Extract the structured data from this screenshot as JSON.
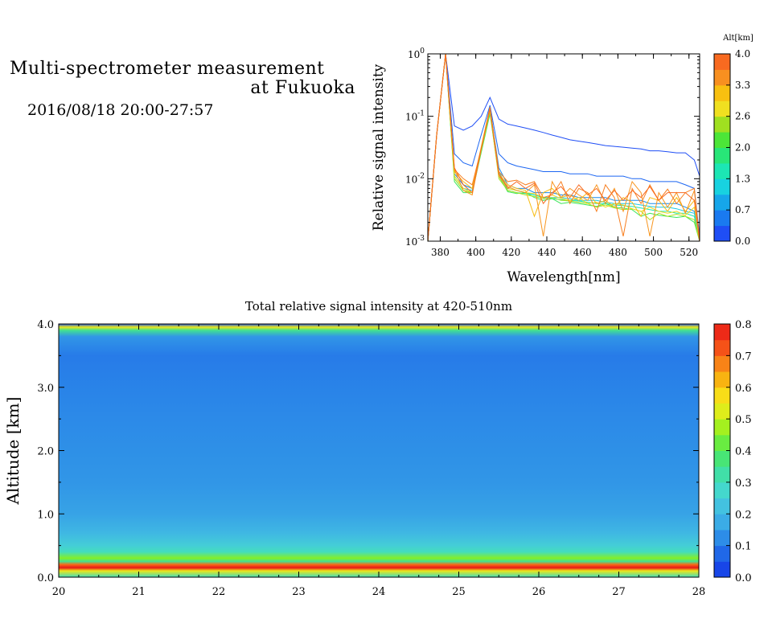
{
  "header": {
    "title_line1": "Multi-spectrometer measurement",
    "title_line2": "at Fukuoka",
    "datetime": "2016/08/18 20:00-27:57"
  },
  "colors": {
    "alt_scale": [
      "#1f4ef5",
      "#1a7af0",
      "#16a6ea",
      "#18d2e0",
      "#1ce6b4",
      "#28e678",
      "#4ce638",
      "#a0e020",
      "#f0e020",
      "#f8c010",
      "#f89020",
      "#f86a20"
    ],
    "heat_scale": [
      "#1436e8",
      "#1c5ae8",
      "#2a86e8",
      "#3aaae6",
      "#44c4e0",
      "#44dcc8",
      "#40e09a",
      "#4ee85a",
      "#8cf020",
      "#d8f01c",
      "#f8e018",
      "#f8b010",
      "#f87818",
      "#f44018",
      "#e81818"
    ]
  },
  "chart_data": [
    {
      "type": "line",
      "title": "",
      "xlabel": "Wavelength[nm]",
      "ylabel": "Relative signal intensity",
      "xlim": [
        373,
        526
      ],
      "ylim": [
        0.001,
        1
      ],
      "yscale": "log",
      "x_ticks": [
        "380",
        "400",
        "420",
        "440",
        "460",
        "480",
        "500",
        "520"
      ],
      "y_ticks": [
        "10^0",
        "10^-1",
        "10^-2",
        "10^-3"
      ],
      "colorbar": {
        "label": "Alt[km]",
        "ticks": [
          "4.0",
          "3.3",
          "2.6",
          "2.0",
          "1.3",
          "0.7",
          "0.0"
        ],
        "range": [
          0,
          4
        ]
      },
      "x": [
        373,
        378,
        383,
        388,
        393,
        398,
        403,
        408,
        413,
        418,
        423,
        428,
        433,
        438,
        443,
        448,
        453,
        458,
        463,
        468,
        473,
        478,
        483,
        488,
        493,
        498,
        503,
        508,
        513,
        518,
        523,
        526
      ],
      "series": [
        {
          "alt": 0.0,
          "values": [
            0.001,
            0.05,
            1.0,
            0.07,
            0.06,
            0.07,
            0.1,
            0.2,
            0.09,
            0.075,
            0.07,
            0.065,
            0.06,
            0.055,
            0.05,
            0.046,
            0.042,
            0.04,
            0.038,
            0.036,
            0.034,
            0.033,
            0.032,
            0.031,
            0.03,
            0.028,
            0.028,
            0.027,
            0.026,
            0.026,
            0.02,
            0.011
          ]
        },
        {
          "alt": 0.2,
          "values": [
            0.001,
            0.05,
            1.0,
            0.025,
            0.018,
            0.016,
            0.05,
            0.15,
            0.025,
            0.018,
            0.016,
            0.015,
            0.014,
            0.013,
            0.013,
            0.013,
            0.012,
            0.012,
            0.012,
            0.011,
            0.011,
            0.011,
            0.011,
            0.01,
            0.01,
            0.009,
            0.009,
            0.009,
            0.009,
            0.008,
            0.007,
            0.0012
          ]
        },
        {
          "alt": 0.5,
          "values": [
            0.001,
            0.05,
            1.0,
            0.012,
            0.008,
            0.007,
            0.03,
            0.13,
            0.015,
            0.008,
            0.007,
            0.007,
            0.006,
            0.006,
            0.006,
            0.0055,
            0.0055,
            0.005,
            0.005,
            0.005,
            0.005,
            0.0045,
            0.0045,
            0.0045,
            0.0045,
            0.004,
            0.004,
            0.004,
            0.004,
            0.0035,
            0.003,
            0.001
          ]
        },
        {
          "alt": 1.0,
          "values": [
            0.001,
            0.05,
            1.0,
            0.011,
            0.007,
            0.0065,
            0.03,
            0.14,
            0.013,
            0.007,
            0.0065,
            0.006,
            0.0055,
            0.005,
            0.005,
            0.005,
            0.0048,
            0.0045,
            0.0045,
            0.0045,
            0.0042,
            0.004,
            0.004,
            0.004,
            0.0038,
            0.0036,
            0.0035,
            0.0035,
            0.0033,
            0.003,
            0.0028,
            0.001
          ]
        },
        {
          "alt": 1.5,
          "values": [
            0.001,
            0.05,
            1.0,
            0.01,
            0.0065,
            0.006,
            0.028,
            0.12,
            0.012,
            0.0065,
            0.006,
            0.0058,
            0.0055,
            0.005,
            0.0048,
            0.0046,
            0.0045,
            0.0044,
            0.0042,
            0.004,
            0.004,
            0.0038,
            0.0037,
            0.0036,
            0.0034,
            0.0032,
            0.003,
            0.003,
            0.0028,
            0.0028,
            0.0025,
            0.001
          ]
        },
        {
          "alt": 2.0,
          "values": [
            0.001,
            0.05,
            1.0,
            0.009,
            0.006,
            0.006,
            0.026,
            0.11,
            0.011,
            0.0062,
            0.0058,
            0.006,
            0.005,
            0.0045,
            0.0048,
            0.004,
            0.0042,
            0.004,
            0.0038,
            0.0036,
            0.004,
            0.0035,
            0.0034,
            0.0032,
            0.0025,
            0.0028,
            0.0026,
            0.0025,
            0.0024,
            0.0025,
            0.002,
            0.001
          ]
        },
        {
          "alt": 2.6,
          "values": [
            0.001,
            0.05,
            1.0,
            0.01,
            0.0065,
            0.006,
            0.028,
            0.12,
            0.01,
            0.0065,
            0.006,
            0.0055,
            0.0052,
            0.0048,
            0.005,
            0.0045,
            0.0044,
            0.0042,
            0.004,
            0.0035,
            0.0038,
            0.0034,
            0.0032,
            0.0033,
            0.003,
            0.0022,
            0.0028,
            0.0025,
            0.0027,
            0.0025,
            0.0022,
            0.001
          ]
        },
        {
          "alt": 3.0,
          "values": [
            0.001,
            0.05,
            1.0,
            0.011,
            0.007,
            0.006,
            0.03,
            0.13,
            0.011,
            0.007,
            0.0065,
            0.006,
            0.0058,
            0.005,
            0.0055,
            0.0048,
            0.0045,
            0.005,
            0.004,
            0.0042,
            0.0035,
            0.004,
            0.0038,
            0.0033,
            0.003,
            0.0035,
            0.003,
            0.0028,
            0.003,
            0.0026,
            0.0035,
            0.001
          ]
        },
        {
          "alt": 3.3,
          "values": [
            0.001,
            0.05,
            1.0,
            0.013,
            0.009,
            0.007,
            0.032,
            0.14,
            0.012,
            0.008,
            0.007,
            0.0065,
            0.0025,
            0.006,
            0.007,
            0.005,
            0.0055,
            0.0045,
            0.006,
            0.004,
            0.0045,
            0.0035,
            0.005,
            0.0042,
            0.0025,
            0.005,
            0.0045,
            0.003,
            0.005,
            0.003,
            0.0045,
            0.001
          ]
        },
        {
          "alt": 3.6,
          "values": [
            0.001,
            0.05,
            1.0,
            0.014,
            0.0065,
            0.0055,
            0.03,
            0.13,
            0.011,
            0.0075,
            0.0065,
            0.006,
            0.008,
            0.0012,
            0.009,
            0.005,
            0.007,
            0.0055,
            0.0045,
            0.008,
            0.004,
            0.007,
            0.003,
            0.009,
            0.006,
            0.0012,
            0.006,
            0.0035,
            0.006,
            0.0028,
            0.0065,
            0.001
          ]
        },
        {
          "alt": 3.8,
          "values": [
            0.001,
            0.05,
            1.0,
            0.014,
            0.01,
            0.008,
            0.03,
            0.13,
            0.013,
            0.009,
            0.0095,
            0.008,
            0.009,
            0.005,
            0.0055,
            0.009,
            0.004,
            0.007,
            0.006,
            0.003,
            0.008,
            0.005,
            0.0012,
            0.007,
            0.004,
            0.008,
            0.0045,
            0.0068,
            0.004,
            0.006,
            0.007,
            0.001
          ]
        },
        {
          "alt": 4.0,
          "values": [
            0.001,
            0.05,
            1.0,
            0.015,
            0.008,
            0.006,
            0.03,
            0.14,
            0.012,
            0.007,
            0.009,
            0.007,
            0.0085,
            0.004,
            0.006,
            0.0075,
            0.005,
            0.008,
            0.0055,
            0.007,
            0.0045,
            0.0065,
            0.0045,
            0.0065,
            0.005,
            0.0075,
            0.0045,
            0.006,
            0.006,
            0.006,
            0.0045,
            0.001
          ]
        }
      ]
    },
    {
      "type": "heatmap",
      "title": "Total relative signal intensity at 420-510nm",
      "xlabel": "",
      "ylabel": "Altitude [km]",
      "xlim": [
        20,
        28
      ],
      "ylim": [
        0,
        4
      ],
      "x_ticks": [
        "20",
        "21",
        "22",
        "23",
        "24",
        "25",
        "26",
        "27",
        "28"
      ],
      "y_ticks": [
        "0.0",
        "1.0",
        "2.0",
        "3.0",
        "4.0"
      ],
      "colorbar": {
        "ticks": [
          "0.0",
          "0.1",
          "0.2",
          "0.3",
          "0.4",
          "0.5",
          "0.6",
          "0.7",
          "0.8"
        ],
        "range": [
          0,
          0.8
        ]
      },
      "data_x_end": 27.77,
      "profile": {
        "altitudes": [
          0.0,
          0.1,
          0.15,
          0.2,
          0.25,
          0.3,
          0.4,
          0.5,
          0.7,
          1.0,
          1.5,
          2.0,
          2.5,
          3.0,
          3.5,
          3.8,
          3.9,
          3.95,
          4.0
        ],
        "values": [
          0.3,
          0.55,
          0.85,
          0.7,
          0.35,
          0.45,
          0.3,
          0.25,
          0.2,
          0.16,
          0.14,
          0.13,
          0.12,
          0.11,
          0.1,
          0.14,
          0.35,
          0.55,
          0.05
        ]
      },
      "high_signal_patches_at_top_hours": [
        20.55,
        20.8,
        21.1,
        21.6,
        21.75,
        22.55,
        22.65,
        23.35,
        23.8,
        23.9,
        24.3,
        24.55,
        25.6,
        26.2,
        26.6,
        26.75,
        27.6
      ]
    }
  ]
}
